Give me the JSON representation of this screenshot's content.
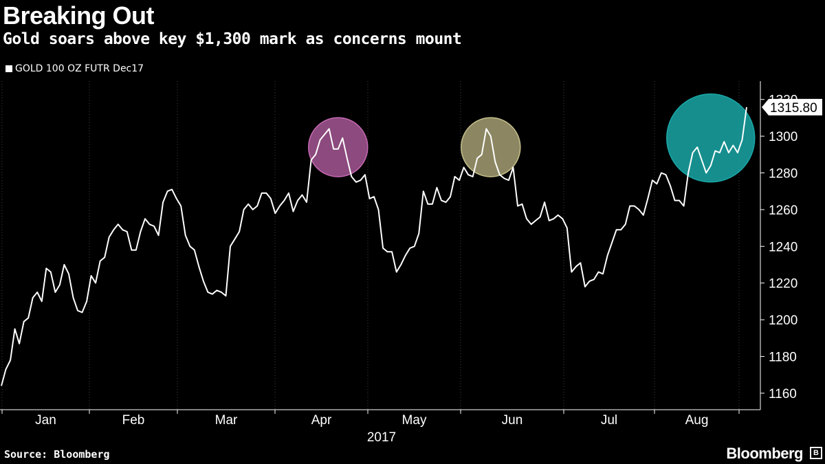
{
  "header": {
    "title": "Breaking Out",
    "subtitle": "Gold soars above key $1,300 mark as concerns mount"
  },
  "legend": {
    "label": "GOLD 100 OZ FUTR Dec17"
  },
  "footer": {
    "source": "Source: Bloomberg",
    "brand": "Bloomberg"
  },
  "colors": {
    "background": "#000000",
    "line": "#ffffff",
    "grid": "#444444",
    "highlight_pink": "#c86ab4",
    "highlight_olive": "#c7c08c",
    "highlight_teal": "#1aa7a7"
  },
  "chart_data": {
    "type": "line",
    "title": "Breaking Out",
    "subtitle": "Gold soars above key $1,300 mark as concerns mount",
    "series": [
      {
        "name": "GOLD 100 OZ FUTR Dec17",
        "values": [
          1164,
          1173,
          1178,
          1195,
          1187,
          1199,
          1201,
          1212,
          1215,
          1210,
          1228,
          1226,
          1215,
          1219,
          1230,
          1225,
          1212,
          1205,
          1204,
          1210,
          1224,
          1220,
          1232,
          1234,
          1245,
          1249,
          1252,
          1249,
          1248,
          1238,
          1238,
          1248,
          1255,
          1252,
          1251,
          1246,
          1264,
          1270,
          1271,
          1266,
          1262,
          1246,
          1240,
          1238,
          1229,
          1221,
          1215,
          1214,
          1216,
          1215,
          1213,
          1240,
          1244,
          1248,
          1260,
          1263,
          1260,
          1262,
          1269,
          1269,
          1266,
          1258,
          1262,
          1265,
          1269,
          1259,
          1265,
          1268,
          1264,
          1287,
          1290,
          1298,
          1301,
          1304,
          1293,
          1293,
          1299,
          1288,
          1278,
          1275,
          1276,
          1279,
          1266,
          1267,
          1260,
          1239,
          1237,
          1237,
          1226,
          1230,
          1235,
          1239,
          1240,
          1247,
          1270,
          1263,
          1263,
          1272,
          1265,
          1264,
          1267,
          1278,
          1276,
          1283,
          1279,
          1278,
          1288,
          1290,
          1304,
          1300,
          1286,
          1279,
          1277,
          1276,
          1283,
          1262,
          1263,
          1255,
          1252,
          1254,
          1256,
          1264,
          1254,
          1255,
          1257,
          1255,
          1250,
          1226,
          1229,
          1231,
          1218,
          1221,
          1222,
          1226,
          1225,
          1235,
          1242,
          1249,
          1249,
          1252,
          1262,
          1262,
          1260,
          1257,
          1266,
          1276,
          1274,
          1280,
          1279,
          1273,
          1265,
          1265,
          1262,
          1280,
          1291,
          1294,
          1287,
          1280,
          1284,
          1292,
          1291,
          1297,
          1291,
          1295,
          1291,
          1298,
          1315.8
        ],
        "last_value": "1315.80"
      }
    ],
    "x_ticks": [
      "Jan",
      "Feb",
      "Mar",
      "Apr",
      "May",
      "Jun",
      "Jul",
      "Aug"
    ],
    "x_label": "2017",
    "y_ticks": [
      1160,
      1180,
      1200,
      1220,
      1240,
      1260,
      1280,
      1300,
      1320
    ],
    "ylim": [
      1151,
      1330
    ],
    "highlights": [
      {
        "name": "april-peak",
        "center_index": 75,
        "center_value": 1294,
        "color_key": "highlight_pink"
      },
      {
        "name": "june-peak",
        "center_index": 109,
        "center_value": 1294,
        "color_key": "highlight_olive"
      },
      {
        "name": "august-breakout",
        "center_index": 158,
        "center_value": 1299,
        "color_key": "highlight_teal"
      }
    ],
    "grid": "vertical",
    "legend_position": "top-left"
  }
}
